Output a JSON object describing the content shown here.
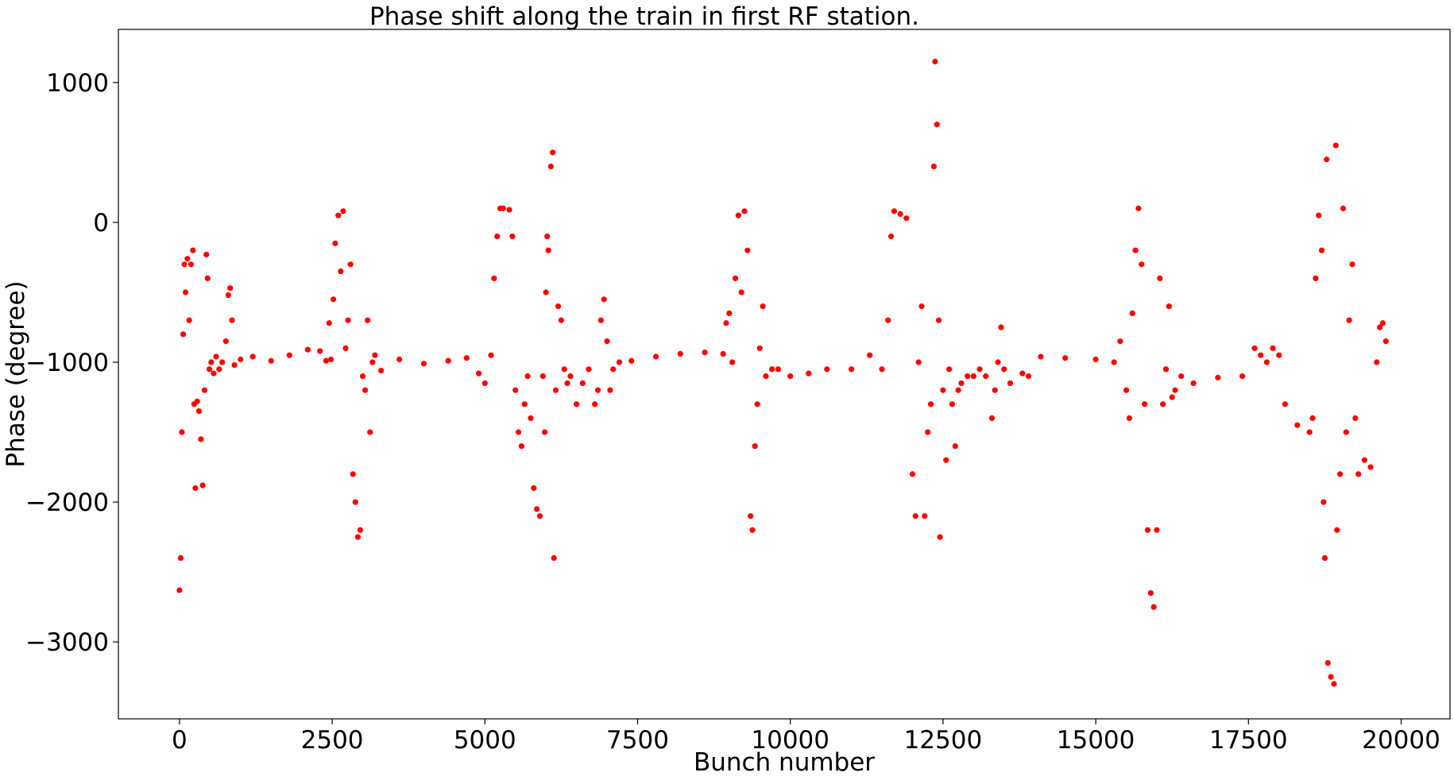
{
  "chart_data": {
    "type": "scatter",
    "title": "Phase shift along the train in first RF station.",
    "xlabel": "Bunch number",
    "ylabel": "Phase (degree)",
    "xlim": [
      -1000,
      20800
    ],
    "ylim": [
      -3550,
      1380
    ],
    "xticks": [
      0,
      2500,
      5000,
      7500,
      10000,
      12500,
      15000,
      17500,
      20000
    ],
    "xtick_labels": [
      "0",
      "2500",
      "5000",
      "7500",
      "10000",
      "12500",
      "15000",
      "17500",
      "20000"
    ],
    "yticks": [
      1000,
      0,
      -1000,
      -2000,
      -3000
    ],
    "ytick_labels": [
      "1000",
      "0",
      "−1000",
      "−2000",
      "−3000"
    ],
    "grid": false,
    "legend": false,
    "marker_color": "#ff0000",
    "series": [
      {
        "name": "",
        "points": [
          [
            0,
            -2630
          ],
          [
            20,
            -2400
          ],
          [
            40,
            -1500
          ],
          [
            60,
            -800
          ],
          [
            80,
            -300
          ],
          [
            100,
            -500
          ],
          [
            130,
            -260
          ],
          [
            160,
            -700
          ],
          [
            190,
            -300
          ],
          [
            220,
            -200
          ],
          [
            240,
            -1300
          ],
          [
            260,
            -1900
          ],
          [
            290,
            -1280
          ],
          [
            320,
            -1350
          ],
          [
            350,
            -1550
          ],
          [
            380,
            -1880
          ],
          [
            410,
            -1200
          ],
          [
            440,
            -230
          ],
          [
            460,
            -400
          ],
          [
            490,
            -1050
          ],
          [
            520,
            -1000
          ],
          [
            560,
            -1080
          ],
          [
            600,
            -960
          ],
          [
            650,
            -1050
          ],
          [
            700,
            -1000
          ],
          [
            760,
            -850
          ],
          [
            800,
            -520
          ],
          [
            830,
            -470
          ],
          [
            860,
            -700
          ],
          [
            900,
            -1020
          ],
          [
            1000,
            -980
          ],
          [
            1200,
            -960
          ],
          [
            1500,
            -990
          ],
          [
            1800,
            -950
          ],
          [
            2100,
            -910
          ],
          [
            2300,
            -920
          ],
          [
            2400,
            -990
          ],
          [
            2450,
            -720
          ],
          [
            2480,
            -980
          ],
          [
            2520,
            -550
          ],
          [
            2550,
            -150
          ],
          [
            2600,
            50
          ],
          [
            2640,
            -350
          ],
          [
            2680,
            80
          ],
          [
            2720,
            -900
          ],
          [
            2760,
            -700
          ],
          [
            2800,
            -300
          ],
          [
            2840,
            -1800
          ],
          [
            2880,
            -2000
          ],
          [
            2920,
            -2250
          ],
          [
            2960,
            -2200
          ],
          [
            3000,
            -1100
          ],
          [
            3040,
            -1200
          ],
          [
            3080,
            -700
          ],
          [
            3120,
            -1500
          ],
          [
            3160,
            -1000
          ],
          [
            3200,
            -950
          ],
          [
            3300,
            -1060
          ],
          [
            3600,
            -980
          ],
          [
            4000,
            -1010
          ],
          [
            4400,
            -990
          ],
          [
            4700,
            -970
          ],
          [
            4900,
            -1080
          ],
          [
            5000,
            -1150
          ],
          [
            5100,
            -950
          ],
          [
            5150,
            -400
          ],
          [
            5200,
            -100
          ],
          [
            5250,
            100
          ],
          [
            5300,
            100
          ],
          [
            5400,
            90
          ],
          [
            5450,
            -100
          ],
          [
            5500,
            -1200
          ],
          [
            5550,
            -1500
          ],
          [
            5600,
            -1600
          ],
          [
            5650,
            -1300
          ],
          [
            5700,
            -1100
          ],
          [
            5750,
            -1400
          ],
          [
            5800,
            -1900
          ],
          [
            5850,
            -2050
          ],
          [
            5900,
            -2100
          ],
          [
            5950,
            -1100
          ],
          [
            5980,
            -1500
          ],
          [
            6000,
            -500
          ],
          [
            6020,
            -100
          ],
          [
            6040,
            -200
          ],
          [
            6080,
            400
          ],
          [
            6110,
            500
          ],
          [
            6130,
            -2400
          ],
          [
            6160,
            -1200
          ],
          [
            6200,
            -600
          ],
          [
            6250,
            -700
          ],
          [
            6300,
            -1050
          ],
          [
            6350,
            -1150
          ],
          [
            6400,
            -1100
          ],
          [
            6500,
            -1300
          ],
          [
            6600,
            -1150
          ],
          [
            6700,
            -1050
          ],
          [
            6800,
            -1300
          ],
          [
            6850,
            -1200
          ],
          [
            6900,
            -700
          ],
          [
            6950,
            -550
          ],
          [
            7000,
            -850
          ],
          [
            7050,
            -1200
          ],
          [
            7100,
            -1050
          ],
          [
            7200,
            -1000
          ],
          [
            7400,
            -990
          ],
          [
            7800,
            -960
          ],
          [
            8200,
            -940
          ],
          [
            8600,
            -930
          ],
          [
            8900,
            -940
          ],
          [
            8950,
            -720
          ],
          [
            9000,
            -650
          ],
          [
            9050,
            -1000
          ],
          [
            9100,
            -400
          ],
          [
            9150,
            50
          ],
          [
            9200,
            -500
          ],
          [
            9250,
            80
          ],
          [
            9300,
            -200
          ],
          [
            9350,
            -2100
          ],
          [
            9380,
            -2200
          ],
          [
            9420,
            -1600
          ],
          [
            9460,
            -1300
          ],
          [
            9500,
            -900
          ],
          [
            9550,
            -600
          ],
          [
            9600,
            -1100
          ],
          [
            9700,
            -1050
          ],
          [
            9800,
            -1050
          ],
          [
            10000,
            -1100
          ],
          [
            10300,
            -1080
          ],
          [
            10600,
            -1050
          ],
          [
            11000,
            -1050
          ],
          [
            11300,
            -950
          ],
          [
            11500,
            -1050
          ],
          [
            11600,
            -700
          ],
          [
            11650,
            -100
          ],
          [
            11700,
            80
          ],
          [
            11800,
            60
          ],
          [
            11900,
            30
          ],
          [
            12000,
            -1800
          ],
          [
            12050,
            -2100
          ],
          [
            12100,
            -1000
          ],
          [
            12150,
            -600
          ],
          [
            12200,
            -2100
          ],
          [
            12250,
            -1500
          ],
          [
            12300,
            -1300
          ],
          [
            12350,
            400
          ],
          [
            12370,
            1150
          ],
          [
            12400,
            700
          ],
          [
            12430,
            -700
          ],
          [
            12450,
            -2250
          ],
          [
            12500,
            -1200
          ],
          [
            12550,
            -1700
          ],
          [
            12600,
            -1050
          ],
          [
            12650,
            -1300
          ],
          [
            12700,
            -1600
          ],
          [
            12750,
            -1200
          ],
          [
            12800,
            -1150
          ],
          [
            12900,
            -1100
          ],
          [
            13000,
            -1100
          ],
          [
            13100,
            -1050
          ],
          [
            13200,
            -1100
          ],
          [
            13300,
            -1400
          ],
          [
            13350,
            -1200
          ],
          [
            13400,
            -1000
          ],
          [
            13450,
            -750
          ],
          [
            13500,
            -1050
          ],
          [
            13600,
            -1150
          ],
          [
            13800,
            -1080
          ],
          [
            13900,
            -1100
          ],
          [
            14100,
            -960
          ],
          [
            14500,
            -970
          ],
          [
            15000,
            -980
          ],
          [
            15300,
            -1000
          ],
          [
            15400,
            -850
          ],
          [
            15500,
            -1200
          ],
          [
            15550,
            -1400
          ],
          [
            15600,
            -650
          ],
          [
            15650,
            -200
          ],
          [
            15700,
            100
          ],
          [
            15750,
            -300
          ],
          [
            15800,
            -1300
          ],
          [
            15850,
            -2200
          ],
          [
            15900,
            -2650
          ],
          [
            15950,
            -2750
          ],
          [
            16000,
            -2200
          ],
          [
            16050,
            -400
          ],
          [
            16100,
            -1300
          ],
          [
            16150,
            -1050
          ],
          [
            16200,
            -600
          ],
          [
            16250,
            -1250
          ],
          [
            16300,
            -1200
          ],
          [
            16400,
            -1100
          ],
          [
            16600,
            -1150
          ],
          [
            17000,
            -1110
          ],
          [
            17400,
            -1100
          ],
          [
            17600,
            -900
          ],
          [
            17700,
            -950
          ],
          [
            17800,
            -1000
          ],
          [
            17900,
            -900
          ],
          [
            18000,
            -950
          ],
          [
            18100,
            -1300
          ],
          [
            18300,
            -1450
          ],
          [
            18500,
            -1500
          ],
          [
            18550,
            -1400
          ],
          [
            18600,
            -400
          ],
          [
            18650,
            50
          ],
          [
            18700,
            -200
          ],
          [
            18730,
            -2000
          ],
          [
            18750,
            -2400
          ],
          [
            18780,
            450
          ],
          [
            18800,
            -3150
          ],
          [
            18850,
            -3250
          ],
          [
            18900,
            -3300
          ],
          [
            18930,
            550
          ],
          [
            18950,
            -2200
          ],
          [
            19000,
            -1800
          ],
          [
            19050,
            100
          ],
          [
            19100,
            -1500
          ],
          [
            19150,
            -700
          ],
          [
            19200,
            -300
          ],
          [
            19250,
            -1400
          ],
          [
            19300,
            -1800
          ],
          [
            19400,
            -1700
          ],
          [
            19500,
            -1750
          ],
          [
            19600,
            -1000
          ],
          [
            19650,
            -750
          ],
          [
            19700,
            -720
          ],
          [
            19750,
            -850
          ]
        ]
      }
    ]
  }
}
